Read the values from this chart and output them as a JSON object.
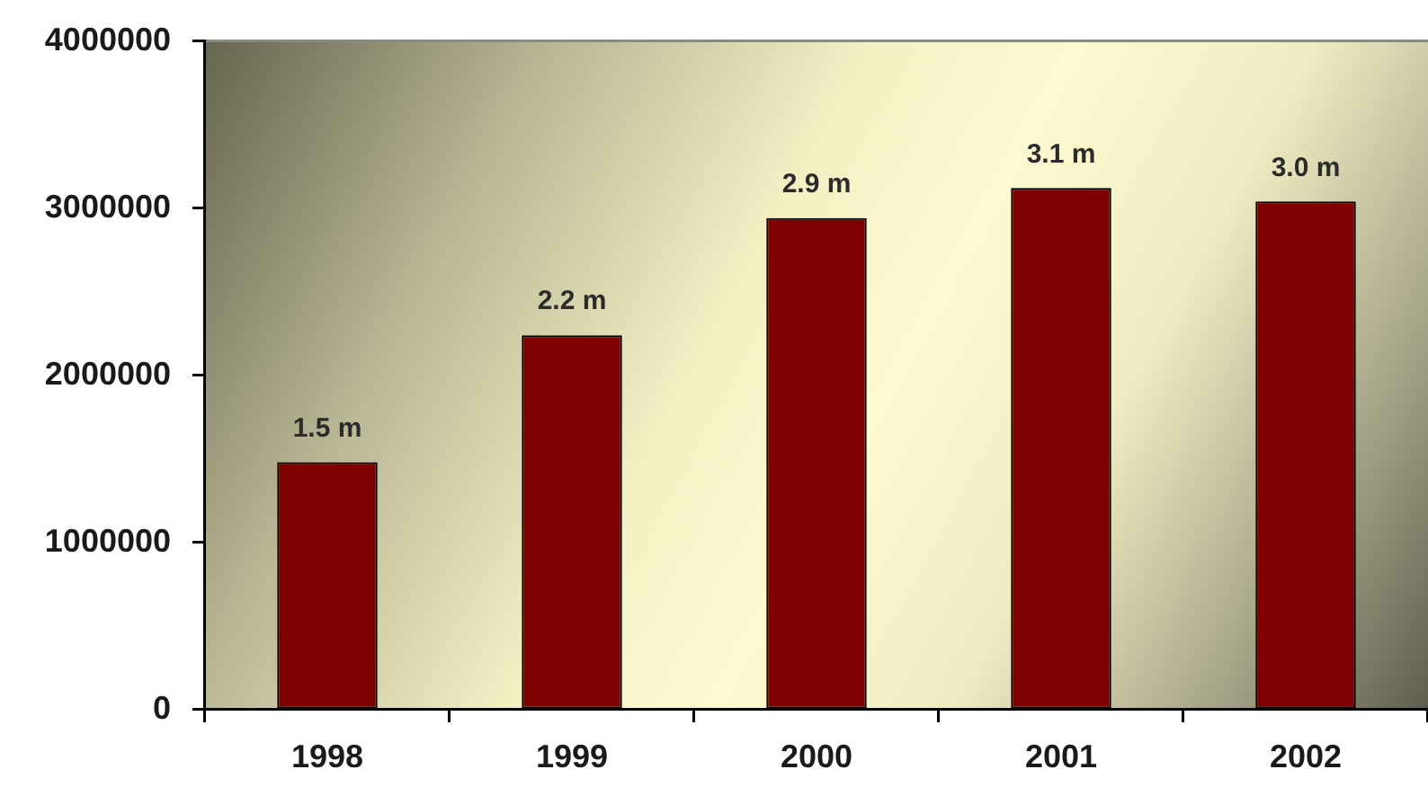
{
  "chart_data": {
    "type": "bar",
    "categories": [
      "1998",
      "1999",
      "2000",
      "2001",
      "2002"
    ],
    "values": [
      1480000,
      2240000,
      2940000,
      3120000,
      3040000
    ],
    "value_labels": [
      "1.5 m",
      "2.2 m",
      "2.9 m",
      "3.1 m",
      "3.0 m"
    ],
    "color": "#800000",
    "ylim": [
      0,
      4000000
    ],
    "yticks": [
      0,
      1000000,
      2000000,
      3000000,
      4000000
    ],
    "grid": false,
    "legend": false
  }
}
